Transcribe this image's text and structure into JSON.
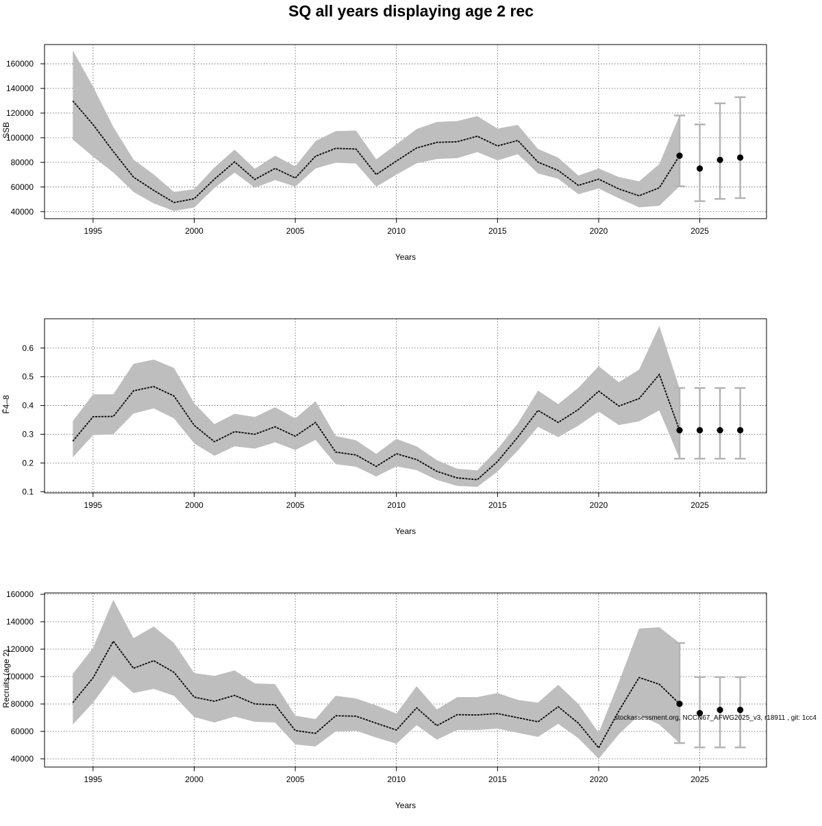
{
  "chart_data": {
    "title": "SQ all years displaying age 2 rec",
    "credit": "stockassessment.org, NCCN67_AFWG2025_v3, r18911 , git: 1cc4",
    "panels": [
      {
        "id": "ssb",
        "type": "line",
        "ylabel": "SSB",
        "xlabel": "Years",
        "xlim": [
          1992.6,
          2028.3
        ],
        "ylim": [
          34300,
          175600
        ],
        "xticks": [
          1995,
          2000,
          2005,
          2010,
          2015,
          2020,
          2025
        ],
        "yticks": [
          40000,
          60000,
          80000,
          100000,
          120000,
          140000,
          160000
        ],
        "years": [
          1994,
          1995,
          1996,
          1997,
          1998,
          1999,
          2000,
          2001,
          2002,
          2003,
          2004,
          2005,
          2006,
          2007,
          2008,
          2009,
          2010,
          2011,
          2012,
          2013,
          2014,
          2015,
          2016,
          2017,
          2018,
          2019,
          2020,
          2021,
          2022,
          2023,
          2024
        ],
        "estimate": [
          129900,
          110600,
          88800,
          68000,
          57300,
          47400,
          50500,
          66400,
          80400,
          66100,
          75100,
          67300,
          85000,
          91400,
          90800,
          70100,
          81100,
          91700,
          96200,
          96700,
          101200,
          93300,
          97800,
          80200,
          73400,
          61300,
          66400,
          58400,
          52900,
          59400,
          85400
        ],
        "lower": [
          98500,
          84600,
          71800,
          56000,
          46700,
          40600,
          43300,
          59200,
          71600,
          59400,
          65600,
          60300,
          75000,
          79700,
          79000,
          60200,
          70000,
          79200,
          82700,
          83400,
          88300,
          81600,
          86600,
          71000,
          66700,
          54200,
          58800,
          50800,
          43500,
          44800,
          60600
        ],
        "upper": [
          170800,
          141400,
          108800,
          82200,
          70200,
          56000,
          58200,
          75800,
          90300,
          74800,
          85500,
          76700,
          97200,
          105400,
          105800,
          82500,
          94600,
          107000,
          112800,
          113500,
          117500,
          107400,
          110400,
          90900,
          83800,
          69300,
          75100,
          68100,
          64600,
          78600,
          118000
        ],
        "forecast": {
          "years": [
            2024,
            2025,
            2026,
            2027
          ],
          "median": [
            85400,
            75000,
            82000,
            83900
          ],
          "lower": [
            60600,
            48500,
            50300,
            51000
          ],
          "upper": [
            118000,
            110800,
            127900,
            132900
          ]
        }
      },
      {
        "id": "fbar",
        "type": "line",
        "ylabel": "F̄4–8",
        "xlabel": "Years",
        "xlim": [
          1992.6,
          2028.3
        ],
        "ylim": [
          0.096,
          0.702
        ],
        "xticks": [
          1995,
          2000,
          2005,
          2010,
          2015,
          2020,
          2025
        ],
        "yticks": [
          0.1,
          0.2,
          0.3,
          0.4,
          0.5,
          0.6
        ],
        "years": [
          1994,
          1995,
          1996,
          1997,
          1998,
          1999,
          2000,
          2001,
          2002,
          2003,
          2004,
          2005,
          2006,
          2007,
          2008,
          2009,
          2010,
          2011,
          2012,
          2013,
          2014,
          2015,
          2016,
          2017,
          2018,
          2019,
          2020,
          2021,
          2022,
          2023,
          2024
        ],
        "estimate": [
          0.276,
          0.361,
          0.362,
          0.451,
          0.466,
          0.433,
          0.331,
          0.274,
          0.309,
          0.3,
          0.326,
          0.293,
          0.341,
          0.238,
          0.228,
          0.188,
          0.232,
          0.212,
          0.171,
          0.148,
          0.142,
          0.205,
          0.29,
          0.383,
          0.341,
          0.386,
          0.45,
          0.398,
          0.424,
          0.508,
          0.314
        ],
        "lower": [
          0.22,
          0.297,
          0.3,
          0.372,
          0.39,
          0.355,
          0.268,
          0.225,
          0.258,
          0.25,
          0.272,
          0.245,
          0.28,
          0.196,
          0.187,
          0.153,
          0.188,
          0.175,
          0.141,
          0.12,
          0.117,
          0.17,
          0.243,
          0.326,
          0.29,
          0.33,
          0.379,
          0.332,
          0.345,
          0.383,
          0.215
        ],
        "upper": [
          0.346,
          0.439,
          0.439,
          0.545,
          0.56,
          0.531,
          0.408,
          0.335,
          0.371,
          0.36,
          0.394,
          0.355,
          0.415,
          0.294,
          0.279,
          0.232,
          0.284,
          0.258,
          0.21,
          0.18,
          0.174,
          0.248,
          0.338,
          0.452,
          0.405,
          0.462,
          0.537,
          0.481,
          0.525,
          0.677,
          0.46
        ],
        "forecast": {
          "years": [
            2024,
            2025,
            2026,
            2027
          ],
          "median": [
            0.314,
            0.314,
            0.314,
            0.314
          ],
          "lower": [
            0.215,
            0.215,
            0.215,
            0.215
          ],
          "upper": [
            0.461,
            0.461,
            0.461,
            0.461
          ]
        }
      },
      {
        "id": "recruits",
        "type": "line",
        "ylabel": "Recruits (age 2)",
        "xlabel": "Years",
        "xlim": [
          1992.6,
          2028.3
        ],
        "ylim": [
          34000,
          161000
        ],
        "xticks": [
          1995,
          2000,
          2005,
          2010,
          2015,
          2020,
          2025
        ],
        "yticks": [
          40000,
          60000,
          80000,
          100000,
          120000,
          140000,
          160000
        ],
        "years": [
          1994,
          1995,
          1996,
          1997,
          1998,
          1999,
          2000,
          2001,
          2002,
          2003,
          2004,
          2005,
          2006,
          2007,
          2008,
          2009,
          2010,
          2011,
          2012,
          2013,
          2014,
          2015,
          2016,
          2017,
          2018,
          2019,
          2020,
          2021,
          2022,
          2023,
          2024
        ],
        "estimate": [
          81000,
          99100,
          125800,
          106000,
          111600,
          103100,
          85000,
          82000,
          86300,
          80000,
          79400,
          60600,
          58600,
          71400,
          71100,
          66000,
          61000,
          77200,
          64200,
          72200,
          72000,
          73000,
          70000,
          67000,
          78000,
          66000,
          48000,
          75000,
          99300,
          94400,
          80100
        ],
        "lower": [
          65000,
          81000,
          101000,
          88000,
          91000,
          86000,
          70500,
          66500,
          70800,
          67000,
          66500,
          50500,
          49000,
          60000,
          60500,
          55500,
          51000,
          64500,
          54000,
          61000,
          61000,
          62000,
          59000,
          56000,
          65500,
          55000,
          40000,
          58000,
          72000,
          65000,
          51500
        ],
        "upper": [
          102000,
          121000,
          156000,
          128000,
          136500,
          124500,
          102500,
          100500,
          104500,
          95000,
          94500,
          71500,
          69000,
          86000,
          84000,
          79000,
          73000,
          93000,
          76000,
          85000,
          85000,
          88000,
          83000,
          81000,
          94000,
          80000,
          59000,
          96000,
          135000,
          136000,
          124500
        ],
        "forecast": {
          "years": [
            2024,
            2025,
            2026,
            2027
          ],
          "median": [
            80100,
            73300,
            75700,
            75700
          ],
          "lower": [
            51500,
            48300,
            48300,
            48300
          ],
          "upper": [
            124500,
            99600,
            99600,
            99600
          ]
        }
      }
    ]
  }
}
